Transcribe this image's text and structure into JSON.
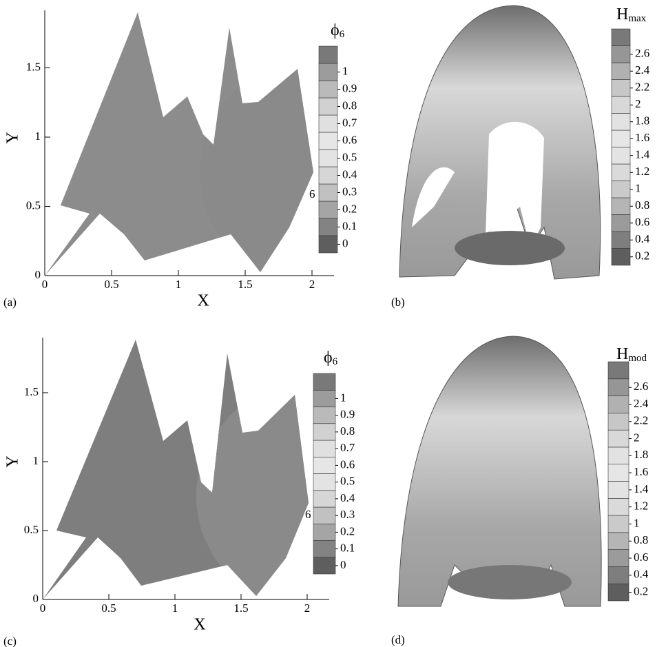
{
  "panels": [
    {
      "label": "(a)",
      "x_label": "X",
      "y_label": "Y",
      "xticks": [
        0,
        0.5,
        1,
        1.5,
        2
      ],
      "yticks": [
        0,
        0.5,
        1,
        1.5
      ],
      "annotation": "6",
      "colorbar": {
        "title": "ϕ",
        "subscript": "6",
        "levels": [
          0,
          0.1,
          0.2,
          0.3,
          0.4,
          0.5,
          0.6,
          0.7,
          0.8,
          0.9,
          1
        ]
      }
    },
    {
      "label": "(b)",
      "colorbar": {
        "title": "H",
        "subscript": "max",
        "levels": [
          0.2,
          0.4,
          0.6,
          0.8,
          1,
          1.2,
          1.4,
          1.6,
          1.8,
          2,
          2.2,
          2.4,
          2.6
        ]
      }
    },
    {
      "label": "(c)",
      "x_label": "X",
      "y_label": "Y",
      "xticks": [
        0,
        0.5,
        1,
        1.5,
        2
      ],
      "yticks": [
        0,
        0.5,
        1,
        1.5
      ],
      "annotation": "6",
      "colorbar": {
        "title": "ϕ",
        "subscript": "6",
        "levels": [
          0,
          0.1,
          0.2,
          0.3,
          0.4,
          0.5,
          0.6,
          0.7,
          0.8,
          0.9,
          1
        ]
      }
    },
    {
      "label": "(d)",
      "colorbar": {
        "title": "H",
        "subscript": "mod",
        "levels": [
          0.2,
          0.4,
          0.6,
          0.8,
          1,
          1.2,
          1.4,
          1.6,
          1.8,
          2,
          2.2,
          2.4,
          2.6
        ]
      }
    }
  ]
}
